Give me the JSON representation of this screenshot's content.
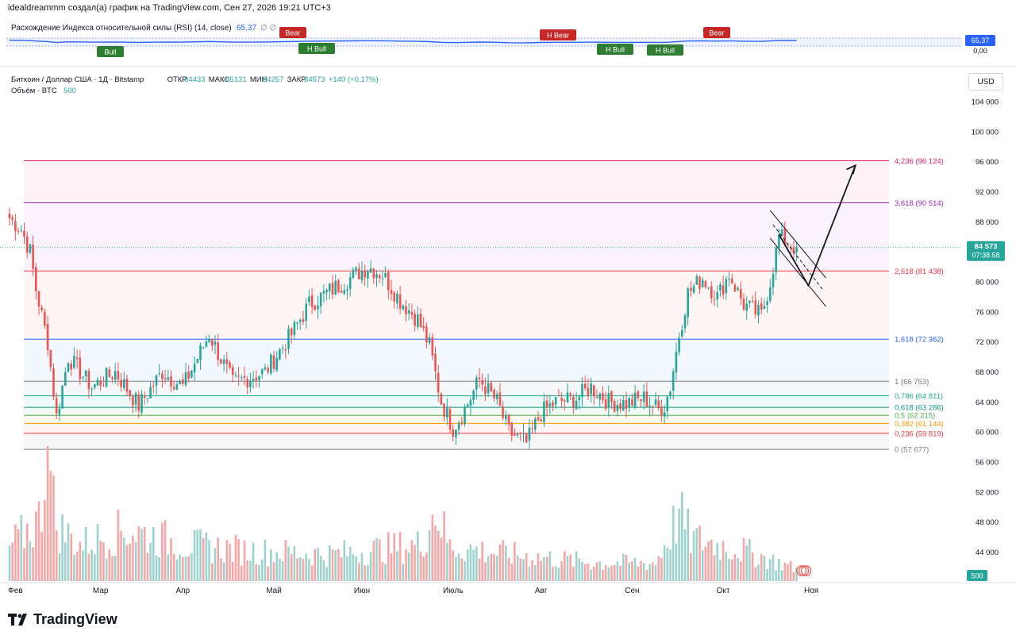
{
  "header": {
    "author_line": "idealdreammm создал(а) график на TradingView.com, Сен 27, 2026 19:21 UTC+3"
  },
  "rsi_pane": {
    "legend": "Расхождение Индекса относительной силы (RSI) (14, close)",
    "value": "65,37",
    "extra": "∅ ∅",
    "axis_labels": [
      "65,37",
      "0,00"
    ],
    "line_color": "#2962ff",
    "tags": [
      {
        "text": "Bull",
        "type": "bull"
      },
      {
        "text": "Bear",
        "type": "bear"
      },
      {
        "text": "H Bull",
        "type": "bull"
      },
      {
        "text": "H Bear",
        "type": "bear"
      },
      {
        "text": "H Bull",
        "type": "bull"
      },
      {
        "text": "H Bull",
        "type": "bull"
      },
      {
        "text": "Bear",
        "type": "bear"
      }
    ]
  },
  "symbol_bar": {
    "name": "Биткоин / Доллар США · 1Д · Bitstamp",
    "o_label": "ОТКР",
    "o": "84433",
    "h_label": "МАКС",
    "h": "85131",
    "l_label": "МИН",
    "l": "84257",
    "c_label": "ЗАКР",
    "c": "84573",
    "change": "+140 (+0,17%)",
    "volume_label": "Объём · BTC",
    "volume_value": "500"
  },
  "price_axis": {
    "currency": "USD",
    "ticks": [
      "104 000",
      "100 000",
      "96 000",
      "92 000",
      "88 000",
      "84 000",
      "80 000",
      "76 000",
      "72 000",
      "68 000",
      "64 000",
      "60 000",
      "56 000",
      "52 000",
      "48 000",
      "44 000"
    ],
    "last_price": "84 573",
    "countdown": "07:38:58",
    "volume_badge": "500"
  },
  "time_axis": [
    "Фев",
    "Мар",
    "Апр",
    "Май",
    "Июн",
    "Июль",
    "Авг",
    "Сен",
    "Окт",
    "Ноя"
  ],
  "fib_levels": [
    {
      "label": "4,236 (96 124)",
      "price": 96124,
      "color": "#e91e63"
    },
    {
      "label": "3,618 (90 514)",
      "price": 90514,
      "color": "#9c27b0"
    },
    {
      "label": "2,618 (81 438)",
      "price": 81438,
      "color": "#f23645"
    },
    {
      "label": "1,618 (72 362)",
      "price": 72362,
      "color": "#2962ff"
    },
    {
      "label": "1 (66 753)",
      "price": 66753,
      "color": "#787b86"
    },
    {
      "label": "0,786 (64 811)",
      "price": 64811,
      "color": "#22ab94"
    },
    {
      "label": "0,618 (63 286)",
      "price": 63286,
      "color": "#089981"
    },
    {
      "label": "0,5 (62 215)",
      "price": 62215,
      "color": "#4caf50"
    },
    {
      "label": "0,382 (61 144)",
      "price": 61144,
      "color": "#ff9800"
    },
    {
      "label": "0,236 (59 819)",
      "price": 59819,
      "color": "#f23645"
    },
    {
      "label": "0 (57 677)",
      "price": 57677,
      "color": "#787b86"
    }
  ],
  "colors": {
    "up": "#26a69a",
    "down": "#ef5350",
    "text": "#131722",
    "muted": "#787b86"
  },
  "chart_data": {
    "type": "candlestick",
    "ylim": [
      44000,
      106000
    ],
    "anchors": [
      {
        "day": 0,
        "price": 88500
      },
      {
        "day": 4,
        "price": 87000
      },
      {
        "day": 7,
        "price": 84000
      },
      {
        "day": 9,
        "price": 79000
      },
      {
        "day": 13,
        "price": 72000
      },
      {
        "day": 16,
        "price": 62000
      },
      {
        "day": 20,
        "price": 70000
      },
      {
        "day": 28,
        "price": 66000
      },
      {
        "day": 36,
        "price": 68000
      },
      {
        "day": 44,
        "price": 63500
      },
      {
        "day": 52,
        "price": 68000
      },
      {
        "day": 59,
        "price": 66000
      },
      {
        "day": 68,
        "price": 73000
      },
      {
        "day": 76,
        "price": 66500
      },
      {
        "day": 87,
        "price": 68000
      },
      {
        "day": 96,
        "price": 73000
      },
      {
        "day": 102,
        "price": 77000
      },
      {
        "day": 110,
        "price": 79000
      },
      {
        "day": 116,
        "price": 80500
      },
      {
        "day": 122,
        "price": 82000
      },
      {
        "day": 127,
        "price": 81000
      },
      {
        "day": 133,
        "price": 77500
      },
      {
        "day": 139,
        "price": 75000
      },
      {
        "day": 143,
        "price": 71500
      },
      {
        "day": 147,
        "price": 64000
      },
      {
        "day": 151,
        "price": 60500
      },
      {
        "day": 155,
        "price": 63000
      },
      {
        "day": 160,
        "price": 67000
      },
      {
        "day": 166,
        "price": 64000
      },
      {
        "day": 170,
        "price": 60000
      },
      {
        "day": 176,
        "price": 58500
      },
      {
        "day": 181,
        "price": 62500
      },
      {
        "day": 186,
        "price": 64000
      },
      {
        "day": 193,
        "price": 64500
      },
      {
        "day": 198,
        "price": 66000
      },
      {
        "day": 204,
        "price": 64000
      },
      {
        "day": 210,
        "price": 63800
      },
      {
        "day": 216,
        "price": 64500
      },
      {
        "day": 221,
        "price": 63000
      },
      {
        "day": 223,
        "price": 63500
      },
      {
        "day": 225,
        "price": 66000
      },
      {
        "day": 228,
        "price": 73000
      },
      {
        "day": 231,
        "price": 78500
      },
      {
        "day": 236,
        "price": 80500
      },
      {
        "day": 241,
        "price": 78000
      },
      {
        "day": 245,
        "price": 81000
      },
      {
        "day": 250,
        "price": 77000
      },
      {
        "day": 256,
        "price": 75500
      },
      {
        "day": 259,
        "price": 80000
      },
      {
        "day": 262,
        "price": 86000
      },
      {
        "day": 266,
        "price": 85000
      },
      {
        "day": 268,
        "price": 84573
      }
    ],
    "volume": [
      {
        "day": 0,
        "v": 0.28
      },
      {
        "day": 10,
        "v": 0.5
      },
      {
        "day": 13,
        "v": 1.0
      },
      {
        "day": 16,
        "v": 0.45
      },
      {
        "day": 24,
        "v": 0.3
      },
      {
        "day": 40,
        "v": 0.42
      },
      {
        "day": 60,
        "v": 0.3
      },
      {
        "day": 80,
        "v": 0.25
      },
      {
        "day": 110,
        "v": 0.22
      },
      {
        "day": 140,
        "v": 0.3
      },
      {
        "day": 145,
        "v": 0.6
      },
      {
        "day": 150,
        "v": 0.28
      },
      {
        "day": 170,
        "v": 0.22
      },
      {
        "day": 200,
        "v": 0.15
      },
      {
        "day": 220,
        "v": 0.15
      },
      {
        "day": 228,
        "v": 0.55
      },
      {
        "day": 232,
        "v": 0.35
      },
      {
        "day": 250,
        "v": 0.25
      },
      {
        "day": 268,
        "v": 0.1
      }
    ],
    "current_price": 84573,
    "projection": [
      {
        "day": 262,
        "price": 86300
      },
      {
        "day": 272,
        "price": 79500
      },
      {
        "day": 288,
        "price": 95500
      }
    ]
  }
}
